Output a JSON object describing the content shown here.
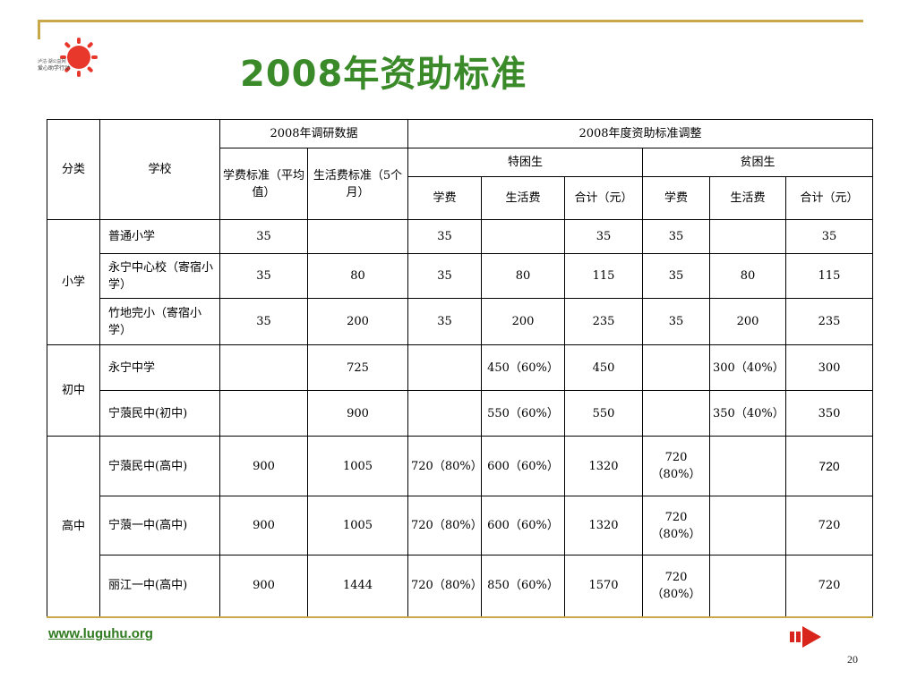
{
  "slide": {
    "title": "2008年资助标准",
    "url": "www.luguhu.org",
    "page_number": "20",
    "logo_text": [
      "泸沽·湖公益网",
      "爱心助学行动"
    ]
  },
  "table": {
    "headers": {
      "category": "分类",
      "school": "学校",
      "survey_group": "2008年调研数据",
      "tuition_standard": "学费标准（平均值）",
      "living_standard": "生活费标准（5个月）",
      "adjust_group": "2008年度资助标准调整",
      "special_poor": "特困生",
      "poor": "贫困生",
      "tuition": "学费",
      "living": "生活费",
      "total": "合计（元）"
    },
    "groups": [
      {
        "category": "小学",
        "rows": [
          {
            "school": "普通小学",
            "tuition_std": "35",
            "living_std": "",
            "sp_tuition": "35",
            "sp_living": "",
            "sp_total": "35",
            "p_tuition": "35",
            "p_living": "",
            "p_total": "35"
          },
          {
            "school": "永宁中心校（寄宿小学）",
            "tuition_std": "35",
            "living_std": "80",
            "sp_tuition": "35",
            "sp_living": "80",
            "sp_total": "115",
            "p_tuition": "35",
            "p_living": "80",
            "p_total": "115"
          },
          {
            "school": "竹地完小（寄宿小学）",
            "tuition_std": "35",
            "living_std": "200",
            "sp_tuition": "35",
            "sp_living": "200",
            "sp_total": "235",
            "p_tuition": "35",
            "p_living": "200",
            "p_total": "235"
          }
        ]
      },
      {
        "category": "初中",
        "rows": [
          {
            "school": "永宁中学",
            "tuition_std": "",
            "living_std": "725",
            "sp_tuition": "",
            "sp_living": "450（60%）",
            "sp_total": "450",
            "p_tuition": "",
            "p_living": "300（40%）",
            "p_total": "300"
          },
          {
            "school": "宁蒗民中(初中)",
            "tuition_std": "",
            "living_std": "900",
            "sp_tuition": "",
            "sp_living": "550（60%）",
            "sp_total": "550",
            "p_tuition": "",
            "p_living": "350（40%）",
            "p_total": "350"
          }
        ]
      },
      {
        "category": "高中",
        "rows": [
          {
            "school": "宁蒗民中(高中)",
            "tuition_std": "900",
            "living_std": "1005",
            "sp_tuition": "720（80%）",
            "sp_living": "600（60%）",
            "sp_total": "1320",
            "p_tuition": "720（80%）",
            "p_living": "",
            "p_total": "720"
          },
          {
            "school": "宁蒗一中(高中)",
            "tuition_std": "900",
            "living_std": "1005",
            "sp_tuition": "720（80%）",
            "sp_living": "600（60%）",
            "sp_total": "1320",
            "p_tuition": "720（80%）",
            "p_living": "",
            "p_total": "720"
          },
          {
            "school": "丽江一中(高中)",
            "tuition_std": "900",
            "living_std": "1444",
            "sp_tuition": "720（80%）",
            "sp_living": "850（60%）",
            "sp_total": "1570",
            "p_tuition": "720（80%）",
            "p_living": "",
            "p_total": "720"
          }
        ]
      }
    ]
  },
  "colors": {
    "title": "#3a8a2a",
    "rule": "#c9a84a",
    "logo_sun": "#e8382c",
    "url": "#2f7a1f",
    "arrow": "#d9261c"
  },
  "icons": {
    "logo": "red-sun-logo-icon",
    "next": "next-arrow-icon"
  }
}
